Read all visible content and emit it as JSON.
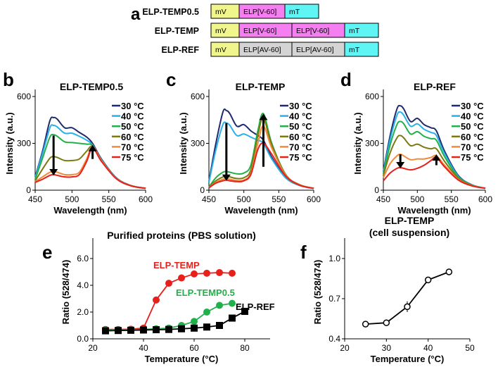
{
  "panel_labels": {
    "a": "a",
    "b": "b",
    "c": "c",
    "d": "d",
    "e": "e",
    "f": "f"
  },
  "constructs": [
    {
      "name": "ELP-TEMP0.5",
      "domains": [
        {
          "label": "mV",
          "color": "#f0f58c"
        },
        {
          "label": "ELP[V-60]",
          "color": "#f57ff0"
        },
        {
          "label": "mT",
          "color": "#5ff5f5"
        }
      ]
    },
    {
      "name": "ELP-TEMP",
      "domains": [
        {
          "label": "mV",
          "color": "#f0f58c"
        },
        {
          "label": "ELP[V-60]",
          "color": "#f57ff0"
        },
        {
          "label": "ELP[V-60]",
          "color": "#f57ff0"
        },
        {
          "label": "mT",
          "color": "#5ff5f5"
        }
      ]
    },
    {
      "name": "ELP-REF",
      "domains": [
        {
          "label": "mV",
          "color": "#f0f58c"
        },
        {
          "label": "ELP[AV-60]",
          "color": "#d4d4d4"
        },
        {
          "label": "ELP[AV-60]",
          "color": "#d4d4d4"
        },
        {
          "label": "mT",
          "color": "#5ff5f5"
        }
      ]
    }
  ],
  "chart_data": [
    {
      "id": "b",
      "type": "line",
      "title": "ELP-TEMP0.5",
      "xlabel": "Wavelength (nm)",
      "ylabel": "Intensity (a.u.)",
      "xlim": [
        450,
        600
      ],
      "ylim": [
        0,
        600
      ],
      "xticks": [
        450,
        500,
        550,
        600
      ],
      "yticks": [
        0,
        300,
        600
      ],
      "x": [
        450,
        460,
        470,
        475,
        480,
        490,
        500,
        510,
        520,
        528,
        540,
        560,
        580,
        600
      ],
      "series": [
        {
          "name": "30 °C",
          "color": "#1f2a6e",
          "values": [
            85,
            250,
            445,
            465,
            455,
            400,
            400,
            370,
            340,
            300,
            200,
            80,
            30,
            12
          ]
        },
        {
          "name": "40 °C",
          "color": "#2ab0e8",
          "values": [
            80,
            235,
            400,
            415,
            405,
            365,
            365,
            345,
            320,
            290,
            195,
            78,
            30,
            12
          ]
        },
        {
          "name": "50 °C",
          "color": "#22b04a",
          "values": [
            70,
            205,
            340,
            355,
            345,
            310,
            305,
            300,
            295,
            285,
            190,
            76,
            29,
            12
          ]
        },
        {
          "name": "60 °C",
          "color": "#7a7a10",
          "values": [
            60,
            135,
            205,
            215,
            210,
            190,
            190,
            200,
            250,
            280,
            190,
            76,
            29,
            12
          ]
        },
        {
          "name": "70 °C",
          "color": "#f08a3c",
          "values": [
            55,
            85,
            115,
            120,
            115,
            100,
            100,
            115,
            200,
            280,
            190,
            76,
            29,
            12
          ]
        },
        {
          "name": "75 °C",
          "color": "#e8201c",
          "values": [
            50,
            70,
            95,
            100,
            95,
            85,
            85,
            100,
            185,
            270,
            185,
            74,
            28,
            12
          ]
        }
      ],
      "arrows": [
        {
          "x": 475,
          "from": 350,
          "to": 95,
          "dir": "down"
        },
        {
          "x": 528,
          "from": 200,
          "to": 290,
          "dir": "up"
        }
      ]
    },
    {
      "id": "c",
      "type": "line",
      "title": "ELP-TEMP",
      "xlabel": "Wavelength (nm)",
      "ylabel": "Intensity (a.u.)",
      "xlim": [
        450,
        600
      ],
      "ylim": [
        0,
        600
      ],
      "xticks": [
        450,
        500,
        550,
        600
      ],
      "yticks": [
        0,
        300,
        600
      ],
      "x": [
        450,
        460,
        470,
        475,
        480,
        490,
        500,
        510,
        520,
        528,
        540,
        560,
        580,
        600
      ],
      "series": [
        {
          "name": "30 °C",
          "color": "#1f2a6e",
          "values": [
            55,
            300,
            500,
            510,
            490,
            410,
            420,
            380,
            350,
            320,
            210,
            80,
            30,
            12
          ]
        },
        {
          "name": "40 °C",
          "color": "#2ab0e8",
          "values": [
            50,
            260,
            420,
            430,
            415,
            350,
            360,
            340,
            320,
            300,
            200,
            78,
            30,
            12
          ]
        },
        {
          "name": "50 °C",
          "color": "#22b04a",
          "values": [
            20,
            80,
            115,
            120,
            115,
            105,
            110,
            160,
            380,
            490,
            300,
            100,
            35,
            12
          ]
        },
        {
          "name": "60 °C",
          "color": "#7a7a10",
          "values": [
            18,
            60,
            85,
            90,
            85,
            75,
            80,
            130,
            350,
            460,
            290,
            98,
            35,
            12
          ]
        },
        {
          "name": "70 °C",
          "color": "#f08a3c",
          "values": [
            16,
            50,
            70,
            75,
            70,
            62,
            65,
            110,
            300,
            410,
            270,
            95,
            34,
            12
          ]
        },
        {
          "name": "75 °C",
          "color": "#e8201c",
          "values": [
            15,
            45,
            60,
            65,
            60,
            55,
            60,
            100,
            260,
            300,
            230,
            90,
            32,
            12
          ]
        }
      ],
      "arrows": [
        {
          "x": 475,
          "from": 430,
          "to": 60,
          "dir": "down"
        },
        {
          "x": 528,
          "from": 150,
          "to": 490,
          "dir": "up"
        }
      ]
    },
    {
      "id": "d",
      "type": "line",
      "title": "ELP-REF",
      "xlabel": "Wavelength (nm)",
      "ylabel": "Intensity (a.u.)",
      "xlim": [
        450,
        600
      ],
      "ylim": [
        0,
        600
      ],
      "xticks": [
        450,
        500,
        550,
        600
      ],
      "yticks": [
        0,
        300,
        600
      ],
      "x": [
        450,
        460,
        470,
        475,
        480,
        490,
        500,
        510,
        520,
        528,
        540,
        560,
        580,
        600
      ],
      "series": [
        {
          "name": "30 °C",
          "color": "#1f2a6e",
          "values": [
            120,
            350,
            520,
            540,
            520,
            440,
            460,
            420,
            400,
            380,
            250,
            95,
            35,
            12
          ]
        },
        {
          "name": "40 °C",
          "color": "#2ab0e8",
          "values": [
            115,
            325,
            480,
            500,
            480,
            410,
            425,
            390,
            370,
            350,
            235,
            90,
            34,
            12
          ]
        },
        {
          "name": "50 °C",
          "color": "#22b04a",
          "values": [
            105,
            290,
            420,
            440,
            425,
            360,
            375,
            345,
            330,
            320,
            215,
            85,
            33,
            12
          ]
        },
        {
          "name": "60 °C",
          "color": "#7a7a10",
          "values": [
            95,
            240,
            335,
            350,
            335,
            285,
            295,
            275,
            265,
            265,
            185,
            78,
            31,
            12
          ]
        },
        {
          "name": "70 °C",
          "color": "#f08a3c",
          "values": [
            80,
            170,
            220,
            230,
            220,
            195,
            200,
            200,
            210,
            220,
            160,
            70,
            29,
            12
          ]
        },
        {
          "name": "75 °C",
          "color": "#e8201c",
          "values": [
            60,
            110,
            140,
            145,
            140,
            130,
            140,
            160,
            190,
            210,
            150,
            66,
            28,
            12
          ]
        }
      ],
      "arrows": [
        {
          "x": 475,
          "from": 230,
          "to": 140,
          "dir": "down"
        },
        {
          "x": 528,
          "from": 160,
          "to": 230,
          "dir": "up"
        }
      ]
    },
    {
      "id": "e",
      "type": "line",
      "title": "Purified proteins (PBS solution)",
      "xlabel": "Temperature (°C)",
      "ylabel": "Ratio (528/474)",
      "xlim": [
        20,
        90
      ],
      "ylim": [
        0,
        7
      ],
      "xticks": [
        20,
        40,
        60,
        80
      ],
      "yticks": [
        0.0,
        2.0,
        4.0,
        6.0
      ],
      "series": [
        {
          "name": "ELP-TEMP",
          "color": "#e8201c",
          "marker": "circle",
          "x": [
            25,
            30,
            35,
            40,
            45,
            50,
            55,
            60,
            65,
            70,
            75
          ],
          "values": [
            0.7,
            0.7,
            0.72,
            0.8,
            2.9,
            4.15,
            4.55,
            4.85,
            4.9,
            4.95,
            4.9
          ]
        },
        {
          "name": "ELP-TEMP0.5",
          "color": "#22b04a",
          "marker": "circle",
          "x": [
            25,
            30,
            35,
            40,
            45,
            50,
            55,
            60,
            65,
            70,
            75
          ],
          "values": [
            0.65,
            0.66,
            0.68,
            0.7,
            0.75,
            0.8,
            1.0,
            1.3,
            2.0,
            2.5,
            2.65
          ]
        },
        {
          "name": "ELP-REF",
          "color": "#000000",
          "marker": "square",
          "x": [
            25,
            30,
            35,
            40,
            45,
            50,
            55,
            60,
            65,
            70,
            75,
            80
          ],
          "values": [
            0.6,
            0.62,
            0.64,
            0.66,
            0.68,
            0.7,
            0.75,
            0.8,
            0.88,
            1.0,
            1.55,
            2.05
          ]
        }
      ]
    },
    {
      "id": "f",
      "type": "line",
      "title": "ELP-TEMP",
      "subtitle": "(cell suspension)",
      "xlabel": "Temperature (°C)",
      "ylabel": "Ratio (528/474)",
      "xlim": [
        20,
        50
      ],
      "ylim": [
        0.4,
        1.1
      ],
      "xticks": [
        20,
        30,
        40,
        50
      ],
      "yticks": [
        0.4,
        0.7,
        1.0
      ],
      "series": [
        {
          "name": "ELP-TEMP",
          "color": "#000000",
          "marker": "open-circle",
          "x": [
            25,
            30,
            35,
            40,
            45
          ],
          "values": [
            0.51,
            0.52,
            0.64,
            0.84,
            0.9
          ],
          "errors": [
            0.01,
            0.01,
            0.04,
            0.01,
            0.01
          ]
        }
      ]
    }
  ]
}
